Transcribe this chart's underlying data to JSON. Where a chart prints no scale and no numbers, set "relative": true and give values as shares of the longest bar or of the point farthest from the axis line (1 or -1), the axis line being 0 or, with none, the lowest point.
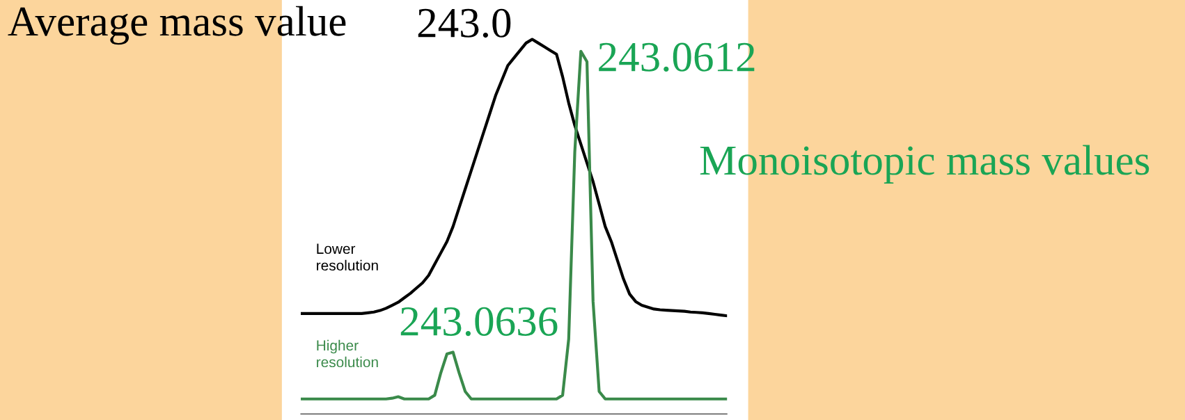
{
  "chart_data": {
    "type": "line",
    "relative": true,
    "categories": [
      null,
      null,
      null,
      null,
      null,
      null,
      null,
      null,
      null,
      null,
      null,
      null,
      null,
      null,
      null,
      null,
      null,
      null,
      null,
      null,
      null,
      null,
      null,
      null,
      null,
      null,
      null,
      null,
      null,
      null,
      null,
      null,
      null,
      null,
      null,
      null,
      null,
      null,
      null,
      null,
      null,
      null,
      null,
      null,
      null,
      null,
      null,
      null,
      null,
      null,
      null,
      null,
      null,
      null,
      null,
      null,
      null,
      null,
      null,
      null,
      null,
      null,
      null,
      null,
      null,
      null,
      null,
      null,
      null,
      null,
      null
    ],
    "series": [
      {
        "name": "Lower\nresolution",
        "color": "#000000",
        "values": [
          0.268,
          0.268,
          0.268,
          0.268,
          0.268,
          0.268,
          0.268,
          0.268,
          0.268,
          0.268,
          0.268,
          0.27,
          0.272,
          0.276,
          0.282,
          0.29,
          0.298,
          0.31,
          0.322,
          0.336,
          0.35,
          0.37,
          0.4,
          0.43,
          0.46,
          0.5,
          0.55,
          0.6,
          0.65,
          0.7,
          0.75,
          0.8,
          0.85,
          0.89,
          0.93,
          0.95,
          0.97,
          0.99,
          1.0,
          0.99,
          0.98,
          0.97,
          0.96,
          0.9,
          0.83,
          0.77,
          0.72,
          0.67,
          0.62,
          0.56,
          0.5,
          0.46,
          0.41,
          0.36,
          0.32,
          0.3,
          0.29,
          0.285,
          0.28,
          0.278,
          0.277,
          0.276,
          0.275,
          0.274,
          0.272,
          0.271,
          0.27,
          0.268,
          0.266,
          0.264,
          0.262
        ]
      },
      {
        "name": "Higher\nresolution",
        "color": "#3a8a4a",
        "values": [
          0.04,
          0.04,
          0.04,
          0.04,
          0.04,
          0.04,
          0.04,
          0.04,
          0.04,
          0.04,
          0.04,
          0.04,
          0.04,
          0.04,
          0.04,
          0.042,
          0.046,
          0.04,
          0.04,
          0.04,
          0.04,
          0.04,
          0.05,
          0.11,
          0.16,
          0.165,
          0.11,
          0.06,
          0.04,
          0.04,
          0.04,
          0.04,
          0.04,
          0.04,
          0.04,
          0.04,
          0.04,
          0.04,
          0.04,
          0.04,
          0.04,
          0.04,
          0.04,
          0.05,
          0.2,
          0.7,
          0.968,
          0.94,
          0.3,
          0.06,
          0.04,
          0.04,
          0.04,
          0.04,
          0.04,
          0.04,
          0.04,
          0.04,
          0.04,
          0.04,
          0.04,
          0.04,
          0.04,
          0.04,
          0.04,
          0.04,
          0.04,
          0.04,
          0.04,
          0.04,
          0.04
        ]
      }
    ],
    "annotations": [
      "Average mass value",
      "243.0",
      "243.0612",
      "Monoisotopic mass values",
      "243.0636"
    ],
    "marker": "none",
    "line_style": "solid",
    "legend": false
  }
}
